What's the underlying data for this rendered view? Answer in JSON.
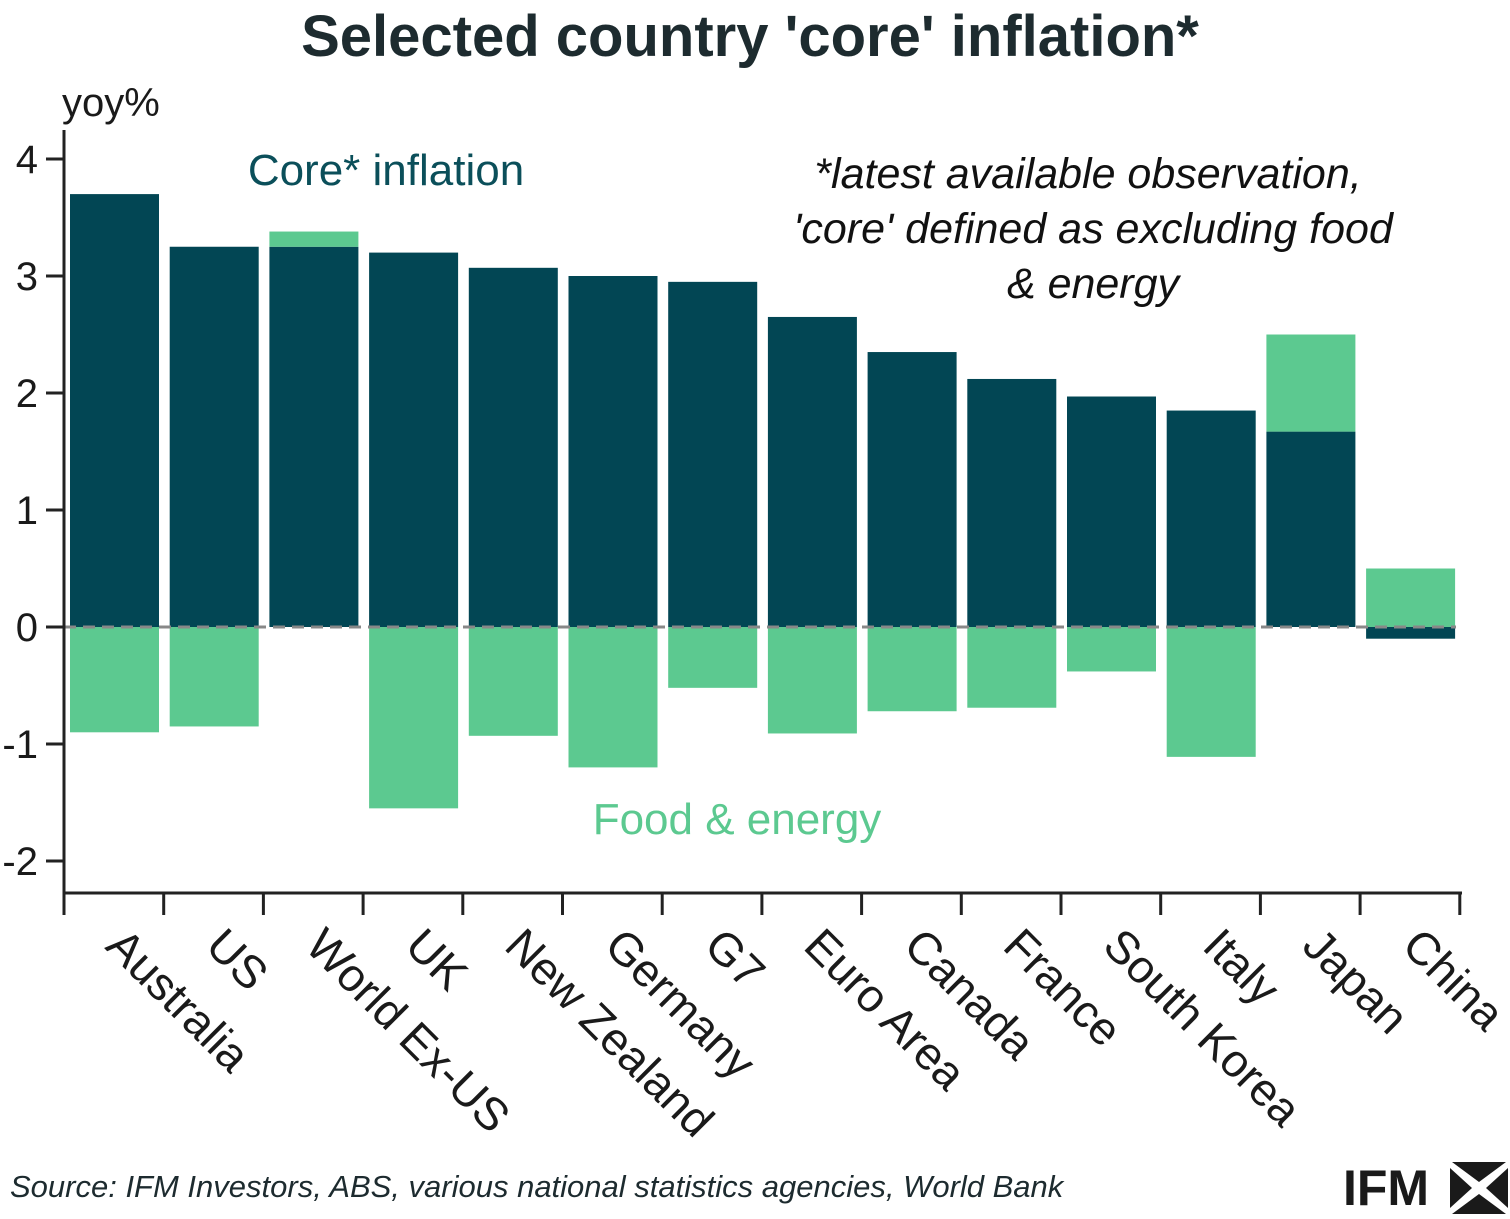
{
  "colors": {
    "core": "#024654",
    "food_energy": "#5cc990",
    "axis": "#222222",
    "zero_line": "#888888",
    "title": "#1d2b2f",
    "core_label": "#0b4f5a",
    "fe_label": "#5cc990"
  },
  "chart_data": {
    "type": "bar",
    "title": "Selected country 'core' inflation*",
    "ylabel": "yoy%",
    "ylim": [
      -2.25,
      4.2
    ],
    "yticks": [
      4,
      3,
      2,
      1,
      0,
      -1,
      -2
    ],
    "ytick_labels": [
      "4",
      "3",
      "2",
      "1",
      "0",
      "-1",
      "-2"
    ],
    "categories": [
      "Australia",
      "US",
      "World Ex-US",
      "UK",
      "New Zealand",
      "Germany",
      "G7",
      "Euro Area",
      "Canada",
      "France",
      "South Korea",
      "Italy",
      "Japan",
      "China"
    ],
    "series": [
      {
        "name": "Core* inflation",
        "values": [
          3.7,
          3.25,
          3.25,
          3.2,
          3.07,
          3.0,
          2.95,
          2.65,
          2.35,
          2.12,
          1.97,
          1.85,
          1.67,
          -0.1
        ]
      },
      {
        "name": "Food & energy",
        "values": [
          -0.9,
          -0.85,
          0.13,
          -1.55,
          -0.93,
          -1.2,
          -0.52,
          -0.91,
          -0.72,
          -0.69,
          -0.38,
          -1.11,
          0.83,
          0.5
        ]
      }
    ],
    "legend": {
      "core_label": "Core* inflation",
      "food_energy_label": "Food & energy"
    },
    "annotation": {
      "line1": "*latest available observation,",
      "line2": "'core' defined as excluding food",
      "line3": "& energy"
    },
    "grid": false
  },
  "footer": {
    "source": "Source: IFM Investors, ABS, various national statistics agencies, World Bank",
    "logo": "IFM"
  }
}
